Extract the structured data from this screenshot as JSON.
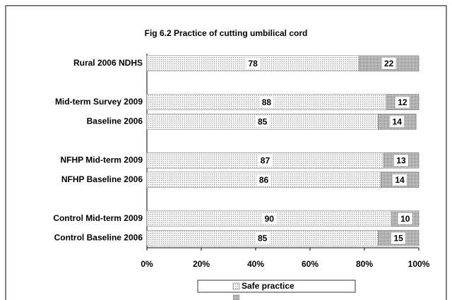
{
  "chart_data": {
    "type": "stacked-barh",
    "title": "Fig 6.2 Practice of cutting umbilical cord",
    "categories": [
      "Rural 2006 NDHS",
      null,
      "Mid-term Survey 2009",
      "Baseline 2006",
      null,
      "NFHP Mid-term 2009",
      "NFHP Baseline 2006",
      null,
      "Control Mid-term 2009",
      "Control Baseline 2006"
    ],
    "series": [
      {
        "name": "Safe practice",
        "color": "#ececec",
        "values": [
          78,
          null,
          88,
          85,
          null,
          87,
          86,
          null,
          90,
          85
        ]
      },
      {
        "color": "#b4b4b4",
        "values": [
          22,
          null,
          12,
          14,
          null,
          13,
          14,
          null,
          10,
          15
        ]
      }
    ],
    "xlim": [
      0,
      100
    ],
    "xticks": [
      {
        "value": 0,
        "label": "0%"
      },
      {
        "value": 20,
        "label": "20%"
      },
      {
        "value": 40,
        "label": "40%"
      },
      {
        "value": 60,
        "label": "60%"
      },
      {
        "value": 80,
        "label": "80%"
      },
      {
        "value": 100,
        "label": "100%"
      }
    ],
    "legend": "bottom"
  }
}
